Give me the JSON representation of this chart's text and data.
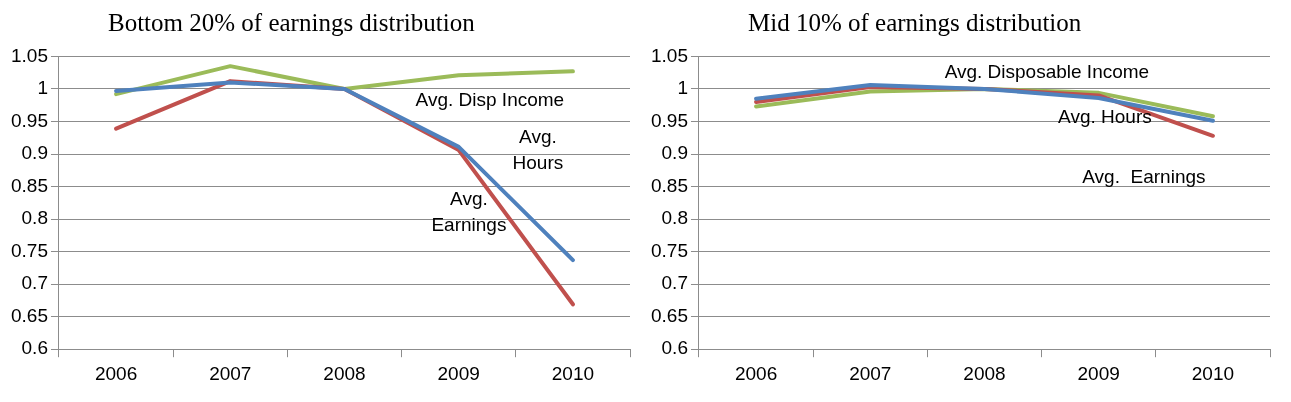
{
  "chart_data": [
    {
      "type": "line",
      "title": "Bottom 20% of earnings distribution",
      "categories": [
        "2006",
        "2007",
        "2008",
        "2009",
        "2010"
      ],
      "series": [
        {
          "name": "Avg.\nHours",
          "color": "#4f81bd",
          "values": [
            0.997,
            1.01,
            1.0,
            0.911,
            0.737
          ]
        },
        {
          "name": "Avg.\nEarnings",
          "color": "#c0504d",
          "values": [
            0.939,
            1.012,
            1.0,
            0.906,
            0.669
          ]
        },
        {
          "name": "Avg. Disp Income",
          "color": "#9bbb59",
          "values": [
            0.992,
            1.035,
            1.0,
            1.021,
            1.027
          ]
        }
      ],
      "ylim": [
        0.6,
        1.05
      ],
      "yticks": [
        0.6,
        0.65,
        0.7,
        0.75,
        0.8,
        0.85,
        0.9,
        0.95,
        1,
        1.05
      ],
      "grid": "y",
      "legend": false,
      "marker": "none",
      "line_style": "solid"
    },
    {
      "type": "line",
      "title": "Mid 10% of earnings distribution",
      "categories": [
        "2006",
        "2007",
        "2008",
        "2009",
        "2010"
      ],
      "series": [
        {
          "name": "Avg. Hours",
          "color": "#4f81bd",
          "values": [
            0.985,
            1.006,
            1.0,
            0.986,
            0.951
          ]
        },
        {
          "name": "Avg.  Earnings",
          "color": "#c0504d",
          "values": [
            0.98,
            1.003,
            1.0,
            0.99,
            0.928
          ]
        },
        {
          "name": "Avg. Disposable Income",
          "color": "#9bbb59",
          "values": [
            0.973,
            0.996,
            1.0,
            0.994,
            0.958
          ]
        }
      ],
      "ylim": [
        0.6,
        1.05
      ],
      "yticks": [
        0.6,
        0.65,
        0.7,
        0.75,
        0.8,
        0.85,
        0.9,
        0.95,
        1,
        1.05
      ],
      "grid": "y",
      "legend": false,
      "marker": "none",
      "line_style": "solid"
    }
  ]
}
